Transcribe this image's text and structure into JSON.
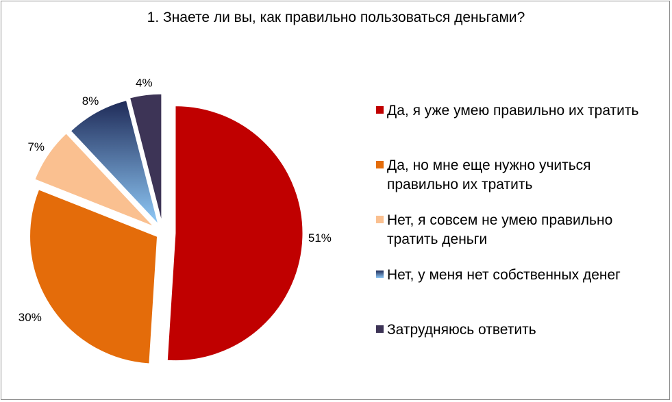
{
  "chart_data": {
    "type": "pie",
    "title": "1. Знаете ли вы, как правильно пользоваться деньгами?",
    "categories": [
      "Да, я уже умею правильно их тратить",
      "Да, но мне еще нужно учиться правильно их тратить",
      "Нет, я совсем не умею правильно тратить деньги",
      "Нет, у меня нет собственных денег",
      "Затрудняюсь ответить"
    ],
    "values": [
      51,
      30,
      7,
      8,
      4
    ],
    "data_labels": [
      "51%",
      "30%",
      "7%",
      "8%",
      "4%"
    ],
    "colors": [
      "#c00000",
      "#e46c0a",
      "#fac090",
      "#243a6e",
      "#3d3456"
    ],
    "gradient_colors": [
      "#1f2b58",
      "#8fc9f7"
    ],
    "legend": "right"
  }
}
